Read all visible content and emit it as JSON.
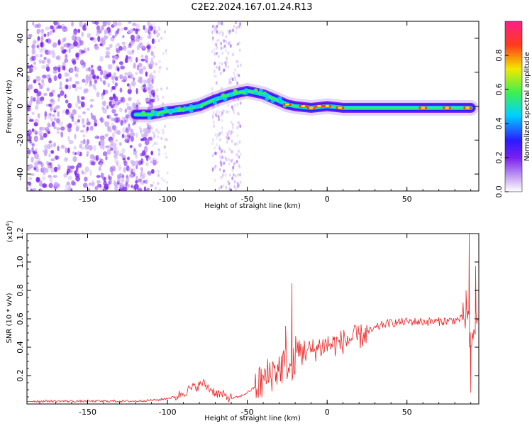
{
  "figure": {
    "title": "C2E2.2024.167.01.24.R13"
  },
  "chart_data": [
    {
      "type": "heatmap",
      "id": "spectrogram",
      "xlabel": "Height of straight line (km)",
      "ylabel": "Frequency (Hz)",
      "xlim": [
        -188,
        95
      ],
      "ylim": [
        -50,
        50
      ],
      "x_ticks": [
        -150,
        -100,
        -50,
        0,
        50
      ],
      "y_ticks": [
        -40,
        -20,
        0,
        20,
        40
      ],
      "colorbar": {
        "label": "Normalized spectral amplitude",
        "range": [
          0,
          1
        ],
        "ticks": [
          0.0,
          0.2,
          0.4,
          0.6,
          0.8
        ],
        "tick_labels": [
          "0.0",
          "0.2",
          "0.4",
          "0.6",
          "0.8"
        ],
        "colormap": [
          "#ffffff",
          "#c8a8f2",
          "#7a1ff0",
          "#2a1cff",
          "#00d2ff",
          "#3cf050",
          "#f2e800",
          "#ff3a1a",
          "#ff1e8c"
        ]
      },
      "ridge": {
        "x": [
          -120,
          -110,
          -100,
          -90,
          -80,
          -70,
          -60,
          -50,
          -45,
          -40,
          -35,
          -30,
          -25,
          -20,
          -10,
          0,
          10,
          20,
          40,
          60,
          80,
          90
        ],
        "y": [
          -5,
          -5,
          -3,
          -2,
          0,
          4,
          7,
          9,
          8,
          7,
          5,
          3,
          1,
          0,
          -1,
          0,
          -1,
          -1,
          -1,
          -1,
          -1,
          -1
        ]
      }
    },
    {
      "type": "line",
      "id": "snr",
      "xlabel": "Height of straight line (km)",
      "ylabel": "SNR (10 * v/v)",
      "multiplier": "(x10",
      "multiplier_exp": "4",
      "multiplier_close": ")",
      "xlim": [
        -188,
        95
      ],
      "ylim": [
        0,
        1.2
      ],
      "x_ticks": [
        -150,
        -100,
        -50,
        0,
        50
      ],
      "y_ticks": [
        0.2,
        0.4,
        0.6,
        0.8,
        1.0,
        1.2
      ],
      "series": [
        {
          "color": "#ee2222",
          "x": [
            -188,
            -150,
            -120,
            -105,
            -95,
            -90,
            -85,
            -80,
            -78,
            -75,
            -70,
            -65,
            -60,
            -55,
            -50,
            -45,
            -40,
            -35,
            -30,
            -25,
            -22,
            -20,
            -15,
            -10,
            -5,
            0,
            5,
            10,
            15,
            20,
            25,
            30,
            35,
            40,
            50,
            60,
            70,
            80,
            85,
            88,
            90,
            92,
            95
          ],
          "y": [
            0.02,
            0.02,
            0.02,
            0.03,
            0.05,
            0.08,
            0.11,
            0.13,
            0.15,
            0.12,
            0.08,
            0.06,
            0.04,
            0.05,
            0.08,
            0.12,
            0.16,
            0.22,
            0.25,
            0.3,
            0.2,
            0.35,
            0.38,
            0.37,
            0.4,
            0.42,
            0.42,
            0.44,
            0.46,
            0.47,
            0.5,
            0.53,
            0.56,
            0.57,
            0.58,
            0.58,
            0.58,
            0.59,
            0.6,
            0.62,
            0.35,
            0.55,
            0.57
          ]
        }
      ],
      "spikes": [
        {
          "x": -22,
          "y": 0.85
        },
        {
          "x": -26,
          "y": 0.55
        },
        {
          "x": 89,
          "y": 1.22
        },
        {
          "x": 90,
          "y": 0.08
        },
        {
          "x": 93,
          "y": 0.97
        },
        {
          "x": 87,
          "y": 0.8
        }
      ]
    }
  ]
}
